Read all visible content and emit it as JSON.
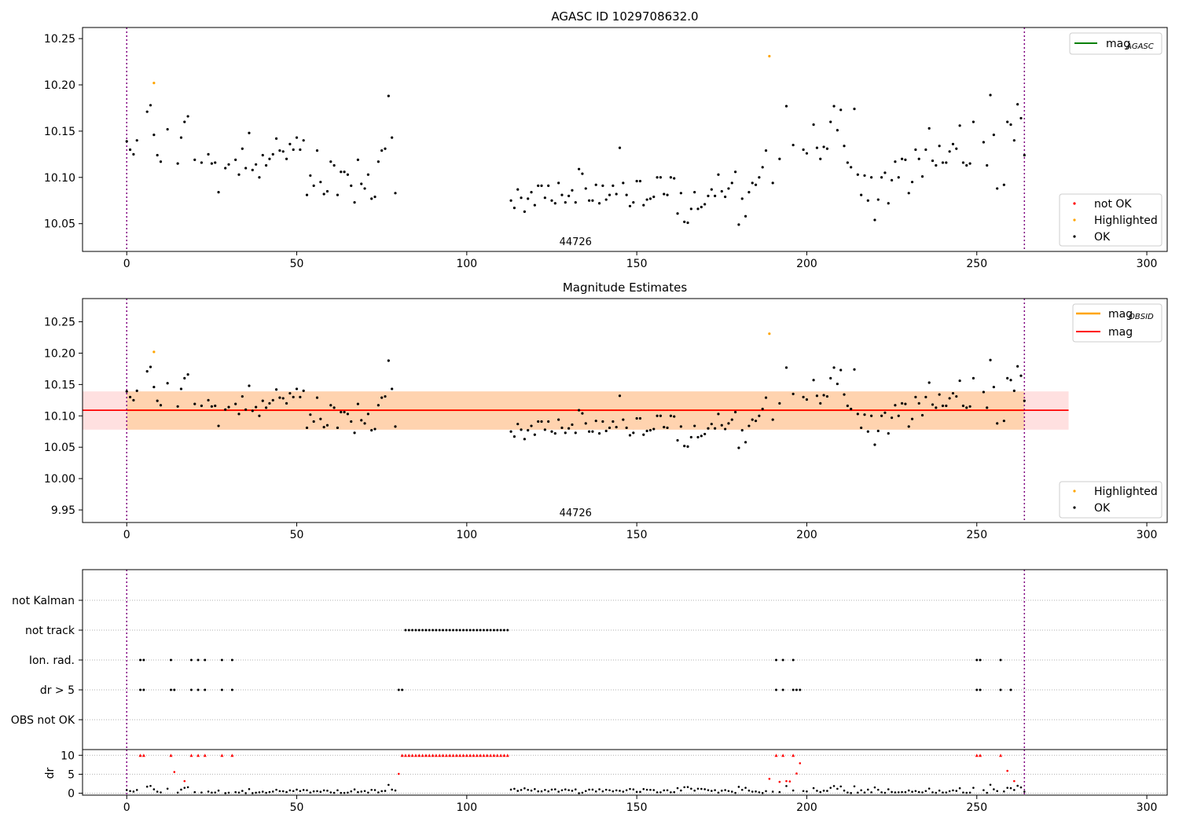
{
  "chart_data": [
    {
      "type": "scatter",
      "title": "AGASC ID 1029708632.0",
      "xlim": [
        -13,
        306
      ],
      "ylim": [
        10.02,
        10.262
      ],
      "xticks": [
        0,
        50,
        100,
        150,
        200,
        250,
        300
      ],
      "yticks": [
        10.05,
        10.1,
        10.15,
        10.2,
        10.25
      ],
      "ytick_labels": [
        "10.05",
        "10.10",
        "10.15",
        "10.20",
        "10.25"
      ],
      "obsid_label": "44726",
      "obsid_label_x": 132,
      "vlines": [
        0,
        264
      ],
      "legend_top": [
        {
          "label": "mag",
          "sub": "AGASC",
          "color": "#008000"
        }
      ],
      "legend_bottom": [
        {
          "label": "not OK",
          "color": "#ff0000"
        },
        {
          "label": "Highlighted",
          "color": "#ffa500"
        },
        {
          "label": "OK",
          "color": "#000000"
        }
      ],
      "series": [
        {
          "name": "Highlighted",
          "color": "#ffa500",
          "x": [
            8,
            189
          ],
          "y": [
            10.202,
            10.231
          ]
        },
        {
          "name": "OK",
          "color": "#000000",
          "x": [
            0,
            1,
            2,
            3,
            6,
            7,
            8,
            9,
            10,
            12,
            15,
            16,
            17,
            18,
            20,
            22,
            24,
            25,
            26,
            27,
            29,
            30,
            32,
            33,
            34,
            35,
            36,
            37,
            38,
            39,
            40,
            41,
            42,
            43,
            44,
            45,
            46,
            47,
            48,
            49,
            50,
            51,
            52,
            53,
            54,
            55,
            56,
            57,
            58,
            59,
            60,
            61,
            62,
            63,
            64,
            65,
            66,
            67,
            68,
            69,
            70,
            71,
            72,
            73,
            74,
            75,
            76,
            77,
            78,
            79,
            113,
            114,
            115,
            116,
            117,
            118,
            119,
            120,
            121,
            122,
            123,
            124,
            125,
            126,
            127,
            128,
            129,
            130,
            131,
            132,
            133,
            134,
            135,
            136,
            137,
            138,
            139,
            140,
            141,
            142,
            143,
            144,
            145,
            146,
            147,
            148,
            149,
            150,
            151,
            152,
            153,
            154,
            155,
            156,
            157,
            158,
            159,
            160,
            161,
            162,
            163,
            164,
            165,
            166,
            167,
            168,
            169,
            170,
            171,
            172,
            173,
            174,
            175,
            176,
            177,
            178,
            179,
            180,
            181,
            182,
            183,
            184,
            185,
            186,
            187,
            188,
            190,
            192,
            194,
            196,
            199,
            200,
            202,
            203,
            204,
            205,
            206,
            207,
            208,
            209,
            210,
            211,
            212,
            213,
            214,
            215,
            216,
            217,
            218,
            219,
            220,
            221,
            222,
            223,
            224,
            225,
            226,
            227,
            228,
            229,
            230,
            231,
            232,
            233,
            234,
            235,
            236,
            237,
            238,
            239,
            240,
            241,
            242,
            243,
            244,
            245,
            246,
            247,
            248,
            249,
            252,
            253,
            254,
            255,
            256,
            258,
            259,
            260,
            261,
            262,
            263,
            264
          ],
          "y": [
            10.139,
            10.13,
            10.125,
            10.14,
            10.171,
            10.178,
            10.146,
            10.124,
            10.117,
            10.152,
            10.115,
            10.143,
            10.16,
            10.166,
            10.119,
            10.116,
            10.125,
            10.115,
            10.116,
            10.084,
            10.11,
            10.114,
            10.119,
            10.103,
            10.131,
            10.11,
            10.148,
            10.108,
            10.114,
            10.1,
            10.124,
            10.113,
            10.12,
            10.125,
            10.142,
            10.129,
            10.128,
            10.12,
            10.136,
            10.13,
            10.143,
            10.13,
            10.14,
            10.081,
            10.102,
            10.091,
            10.129,
            10.095,
            10.082,
            10.085,
            10.117,
            10.113,
            10.081,
            10.106,
            10.106,
            10.103,
            10.091,
            10.073,
            10.119,
            10.093,
            10.088,
            10.103,
            10.077,
            10.079,
            10.117,
            10.129,
            10.131,
            10.188,
            10.143,
            10.083,
            10.075,
            10.067,
            10.087,
            10.078,
            10.063,
            10.077,
            10.084,
            10.07,
            10.091,
            10.091,
            10.078,
            10.091,
            10.075,
            10.072,
            10.094,
            10.081,
            10.073,
            10.08,
            10.086,
            10.073,
            10.109,
            10.104,
            10.088,
            10.075,
            10.075,
            10.092,
            10.072,
            10.091,
            10.076,
            10.081,
            10.091,
            10.082,
            10.132,
            10.094,
            10.081,
            10.069,
            10.073,
            10.096,
            10.096,
            10.07,
            10.076,
            10.077,
            10.079,
            10.1,
            10.1,
            10.082,
            10.081,
            10.1,
            10.099,
            10.061,
            10.083,
            10.052,
            10.051,
            10.066,
            10.084,
            10.066,
            10.068,
            10.071,
            10.08,
            10.087,
            10.08,
            10.103,
            10.085,
            10.079,
            10.088,
            10.094,
            10.106,
            10.049,
            10.077,
            10.058,
            10.084,
            10.094,
            10.092,
            10.1,
            10.111,
            10.129,
            10.094,
            10.12,
            10.177,
            10.135,
            10.13,
            10.126,
            10.157,
            10.132,
            10.12,
            10.133,
            10.131,
            10.16,
            10.177,
            10.151,
            10.173,
            10.134,
            10.116,
            10.111,
            10.174,
            10.103,
            10.081,
            10.102,
            10.075,
            10.1,
            10.054,
            10.076,
            10.1,
            10.105,
            10.072,
            10.097,
            10.117,
            10.1,
            10.12,
            10.119,
            10.083,
            10.095,
            10.13,
            10.12,
            10.101,
            10.13,
            10.153,
            10.118,
            10.113,
            10.134,
            10.116,
            10.116,
            10.128,
            10.136,
            10.131,
            10.156,
            10.116,
            10.113,
            10.115,
            10.16,
            10.138,
            10.113,
            10.189,
            10.146,
            10.088,
            10.092,
            10.16,
            10.157,
            10.14,
            10.179,
            10.164,
            10.124
          ]
        }
      ]
    },
    {
      "type": "scatter",
      "title": "Magnitude Estimates",
      "xlim": [
        -13,
        306
      ],
      "ylim": [
        9.93,
        10.287
      ],
      "xticks": [
        0,
        50,
        100,
        150,
        200,
        250,
        300
      ],
      "yticks": [
        9.95,
        10.0,
        10.05,
        10.1,
        10.15,
        10.2,
        10.25
      ],
      "ytick_labels": [
        "9.95",
        "10.00",
        "10.05",
        "10.10",
        "10.15",
        "10.20",
        "10.25"
      ],
      "obsid_label": "44726",
      "obsid_label_x": 132,
      "vlines": [
        0,
        264
      ],
      "mag_line": 10.109,
      "mag_band": [
        10.078,
        10.139
      ],
      "obsid_band": {
        "x": [
          0,
          264
        ],
        "y": [
          10.078,
          10.139
        ]
      },
      "band_x_extent": [
        -13,
        277
      ],
      "legend_top": [
        {
          "label": "mag",
          "sub": "OBSID",
          "color": "#ffa500"
        },
        {
          "label": "mag",
          "sub": "",
          "color": "#ff0000"
        }
      ],
      "legend_bottom": [
        {
          "label": "Highlighted",
          "color": "#ffa500"
        },
        {
          "label": "OK",
          "color": "#000000"
        }
      ],
      "series_ref": "same data points as the upper panel"
    },
    {
      "type": "scatter",
      "title": "",
      "xlim": [
        -13,
        306
      ],
      "xticks": [
        0,
        50,
        100,
        150,
        200,
        250,
        300
      ],
      "categories": [
        "not Kalman",
        "not track",
        "Ion. rad.",
        "dr > 5",
        "OBS not OK"
      ],
      "vlines": [
        0,
        264
      ],
      "flags": {
        "not_track": [
          82,
          83,
          84,
          85,
          86,
          87,
          88,
          89,
          90,
          91,
          92,
          93,
          94,
          95,
          96,
          97,
          98,
          99,
          100,
          101,
          102,
          103,
          104,
          105,
          106,
          107,
          108,
          109,
          110,
          111,
          112
        ],
        "ion_rad": [
          4,
          5,
          13,
          19,
          21,
          23,
          28,
          31,
          191,
          193,
          196,
          250,
          251,
          257
        ],
        "dr_gt_5": [
          4,
          5,
          13,
          14,
          19,
          21,
          23,
          28,
          31,
          80,
          81,
          191,
          193,
          196,
          197,
          198,
          250,
          251,
          257,
          260
        ]
      },
      "dr_panel": {
        "ylabel": "dr",
        "yticks": [
          0,
          5,
          10
        ],
        "ylim": [
          -0.5,
          11.5
        ],
        "red_capped": [
          4,
          5,
          13,
          19,
          21,
          23,
          28,
          31,
          81,
          82,
          83,
          84,
          85,
          86,
          87,
          88,
          89,
          90,
          91,
          92,
          93,
          94,
          95,
          96,
          97,
          98,
          99,
          100,
          101,
          102,
          103,
          104,
          105,
          106,
          107,
          108,
          109,
          110,
          111,
          112,
          191,
          193,
          196,
          250,
          251,
          257
        ],
        "red_points": {
          "x": [
            14,
            17,
            80,
            189,
            192,
            194,
            195,
            197,
            198,
            259,
            261
          ],
          "y": [
            5.6,
            3.2,
            5.1,
            3.8,
            3.0,
            3.2,
            3.1,
            5.2,
            7.9,
            5.9,
            3.2
          ]
        }
      }
    }
  ]
}
